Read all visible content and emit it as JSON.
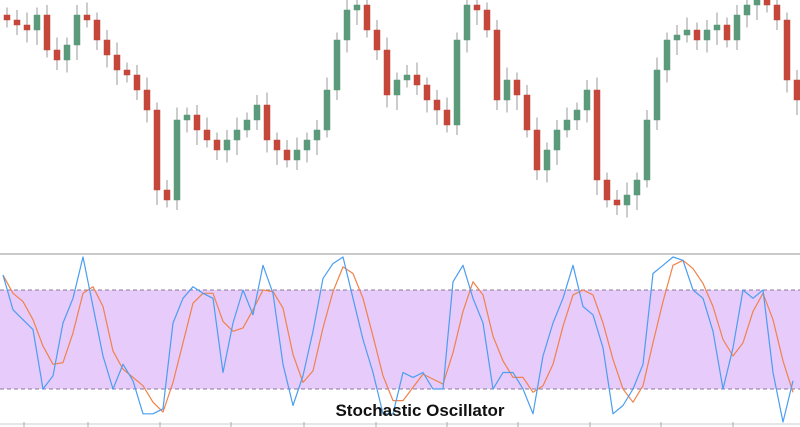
{
  "chart_data": [
    {
      "type": "candlestick",
      "title": "",
      "colors": {
        "up": "#5b9a7b",
        "down": "#c4473a"
      },
      "ylim": [
        0,
        100
      ],
      "close": [
        92,
        90,
        88,
        94,
        80,
        76,
        82,
        94,
        92,
        84,
        78,
        72,
        70,
        64,
        56,
        24,
        20,
        52,
        54,
        48,
        44,
        40,
        44,
        48,
        52,
        58,
        44,
        40,
        36,
        40,
        44,
        48,
        64,
        84,
        96,
        98,
        88,
        80,
        62,
        68,
        70,
        66,
        60,
        56,
        50,
        84,
        98,
        96,
        88,
        60,
        68,
        62,
        48,
        32,
        40,
        48,
        52,
        56,
        64,
        28,
        20,
        18,
        22,
        28,
        52,
        72,
        84,
        86,
        88,
        84,
        88,
        90,
        84,
        94,
        98,
        102,
        98,
        92,
        68,
        60
      ]
    },
    {
      "type": "line",
      "title": "Stochastic Oscillator",
      "ylim": [
        0,
        100
      ],
      "band": {
        "upper": 80,
        "lower": 20,
        "fill": "#e7cbfb",
        "line": "#8a7a9a"
      },
      "series": [
        {
          "key": "k",
          "color": "#4a9ef0",
          "values": [
            89,
            68,
            62,
            56,
            20,
            28,
            60,
            75,
            100,
            70,
            40,
            20,
            35,
            25,
            5,
            5,
            8,
            60,
            75,
            82,
            78,
            75,
            30,
            60,
            80,
            65,
            95,
            78,
            35,
            10,
            28,
            55,
            87,
            96,
            100,
            75,
            50,
            30,
            5,
            5,
            30,
            27,
            30,
            20,
            20,
            85,
            95,
            75,
            60,
            20,
            30,
            30,
            20,
            5,
            40,
            60,
            75,
            95,
            70,
            65,
            45,
            5,
            10,
            20,
            35,
            90,
            95,
            100,
            98,
            80,
            75,
            55,
            20,
            45,
            80,
            75,
            80,
            30,
            0,
            25
          ]
        },
        {
          "key": "d",
          "color": "#f0824a",
          "values": [
            89,
            78,
            73,
            62,
            46,
            35,
            36,
            54,
            78,
            82,
            70,
            43,
            32,
            27,
            22,
            12,
            6,
            24,
            48,
            72,
            78,
            78,
            61,
            55,
            57,
            68,
            80,
            79,
            69,
            41,
            24,
            31,
            57,
            79,
            94,
            90,
            75,
            52,
            28,
            13,
            13,
            21,
            29,
            26,
            23,
            42,
            67,
            85,
            77,
            52,
            37,
            27,
            27,
            18,
            22,
            35,
            58,
            77,
            80,
            77,
            60,
            38,
            20,
            12,
            22,
            48,
            73,
            95,
            98,
            93,
            84,
            70,
            50,
            40,
            48,
            67,
            78,
            62,
            37,
            18
          ]
        }
      ]
    }
  ]
}
